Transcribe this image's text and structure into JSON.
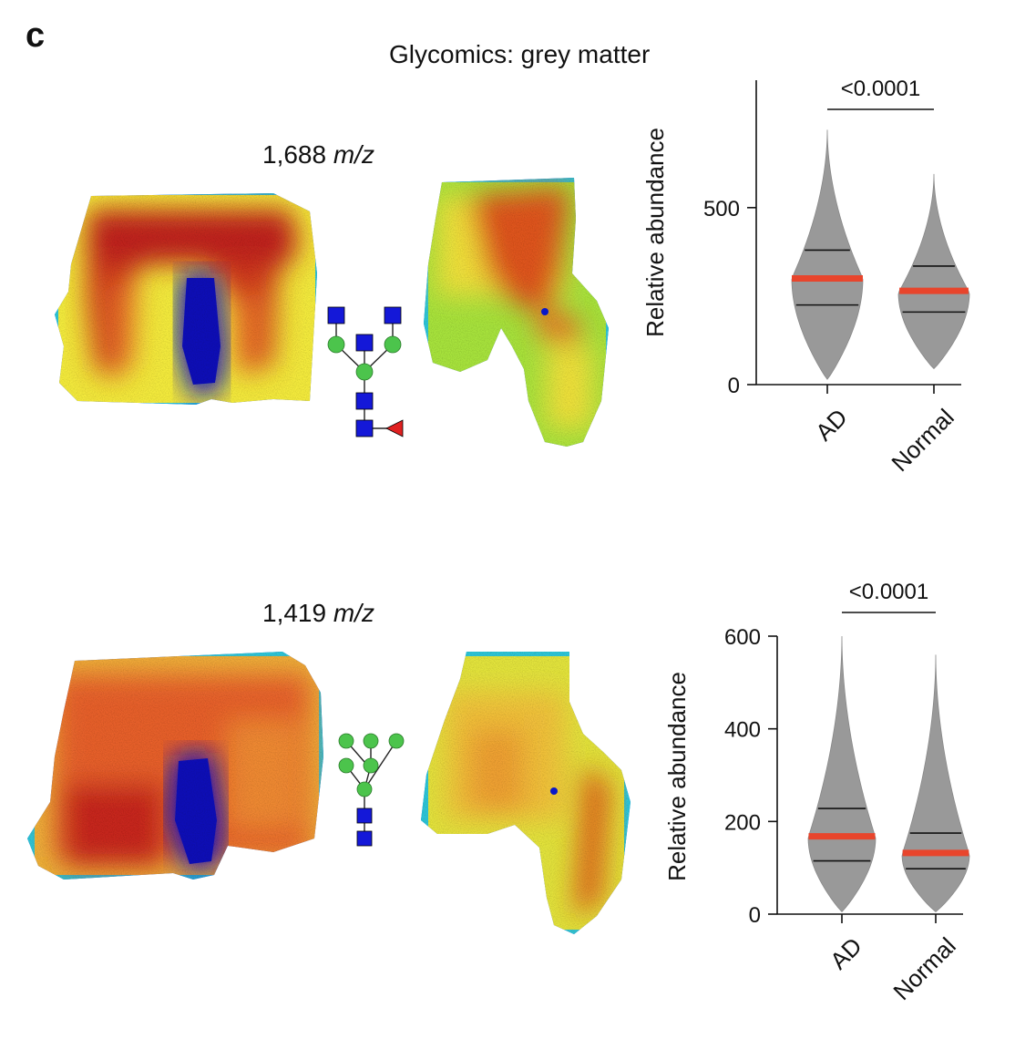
{
  "panel_letter": "c",
  "title": "Glycomics: grey matter",
  "panels": [
    {
      "mz_value": "1,688",
      "mz_unit": "m/z"
    },
    {
      "mz_value": "1,419",
      "mz_unit": "m/z"
    }
  ],
  "colors": {
    "violin": "#999999",
    "median": "#e8452c",
    "quartile": "#111111",
    "glycan_square": "#1418d8",
    "glycan_circle": "#4cc44c",
    "glycan_triangle": "#e02020"
  },
  "chart_data": [
    {
      "type": "violin",
      "title": "",
      "xlabel": "",
      "ylabel": "Relative abundance",
      "ylim": [
        0,
        860
      ],
      "yticks": [
        "0",
        "500"
      ],
      "ytick_values": [
        0,
        500
      ],
      "categories": [
        "AD",
        "Normal"
      ],
      "series": [
        {
          "category": "AD",
          "min": 15,
          "max": 720,
          "q1": 225,
          "median": 300,
          "q3": 380,
          "mode": 300
        },
        {
          "category": "Normal",
          "min": 45,
          "max": 595,
          "q1": 205,
          "median": 265,
          "q3": 335,
          "mode": 260
        }
      ],
      "significance": {
        "label": "<0.0001",
        "between": [
          "AD",
          "Normal"
        ]
      }
    },
    {
      "type": "violin",
      "title": "",
      "xlabel": "",
      "ylabel": "Relative abundance",
      "ylim": [
        0,
        600
      ],
      "yticks": [
        "0",
        "200",
        "400",
        "600"
      ],
      "ytick_values": [
        0,
        200,
        400,
        600
      ],
      "categories": [
        "AD",
        "Normal"
      ],
      "series": [
        {
          "category": "AD",
          "min": 5,
          "max": 600,
          "q1": 115,
          "median": 168,
          "q3": 228,
          "mode": 165
        },
        {
          "category": "Normal",
          "min": 5,
          "max": 560,
          "q1": 98,
          "median": 132,
          "q3": 175,
          "mode": 128
        }
      ],
      "significance": {
        "label": "<0.0001",
        "between": [
          "AD",
          "Normal"
        ]
      }
    }
  ]
}
